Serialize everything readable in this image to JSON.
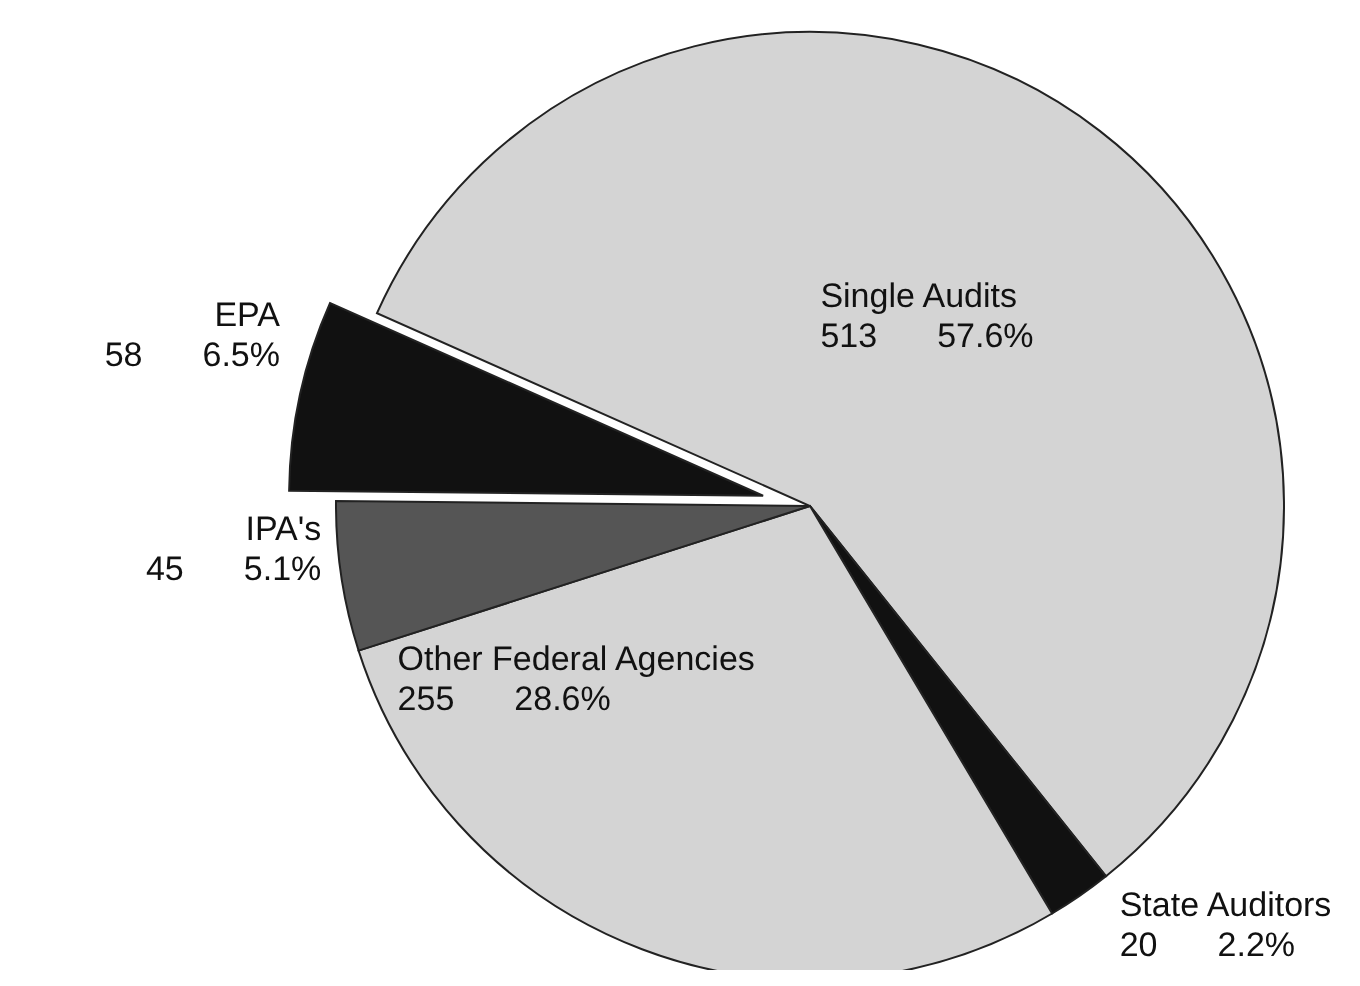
{
  "chart_data": {
    "type": "pie",
    "categories": [
      "Single Audits",
      "State Auditors",
      "Other Federal Agencies",
      "IPA's",
      "EPA"
    ],
    "values": [
      57.6,
      2.2,
      28.6,
      5.1,
      6.5
    ],
    "value_labels": [
      "513 57.6%",
      "20 2.2%",
      "255 28.6%",
      "45 5.1%",
      "58 6.5%"
    ],
    "colors": [
      "#d4d4d4",
      "#111111",
      "#d4d4d4",
      "#555555",
      "#111111"
    ]
  }
}
